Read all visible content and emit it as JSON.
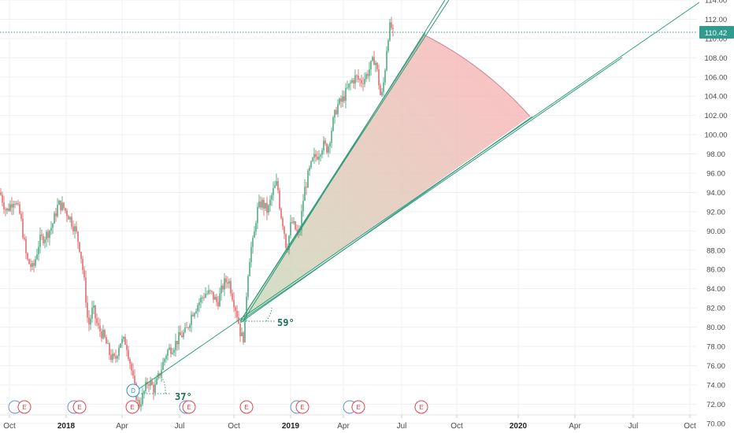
{
  "chart_data": {
    "type": "candlestick",
    "y_range": [
      69,
      114
    ],
    "y_ticks": [
      "114.00",
      "112.00",
      "110.00",
      "108.00",
      "106.00",
      "104.00",
      "102.00",
      "100.00",
      "98.00",
      "96.00",
      "94.00",
      "92.00",
      "90.00",
      "88.00",
      "86.00",
      "84.00",
      "82.00",
      "80.00",
      "78.00",
      "76.00",
      "74.00",
      "72.00",
      "70.00"
    ],
    "x_ticks": [
      {
        "label": "Oct",
        "bold": false
      },
      {
        "label": "2018",
        "bold": true
      },
      {
        "label": "Apr",
        "bold": false
      },
      {
        "label": "Jul",
        "bold": false
      },
      {
        "label": "Oct",
        "bold": false
      },
      {
        "label": "2019",
        "bold": true
      },
      {
        "label": "Apr",
        "bold": false
      },
      {
        "label": "Jul",
        "bold": false
      },
      {
        "label": "Oct",
        "bold": false
      },
      {
        "label": "2020",
        "bold": true
      },
      {
        "label": "Apr",
        "bold": false
      },
      {
        "label": "Jul",
        "bold": false
      },
      {
        "label": "Oct",
        "bold": false
      }
    ],
    "last_price": "110.42",
    "price_path": [
      [
        0,
        94
      ],
      [
        8,
        92
      ],
      [
        18,
        93.4
      ],
      [
        26,
        91.5
      ],
      [
        34,
        87
      ],
      [
        42,
        86
      ],
      [
        50,
        89
      ],
      [
        58,
        89.5
      ],
      [
        66,
        90.5
      ],
      [
        74,
        92.8
      ],
      [
        80,
        92.5
      ],
      [
        88,
        91.5
      ],
      [
        96,
        90
      ],
      [
        102,
        88
      ],
      [
        108,
        84
      ],
      [
        112,
        80
      ],
      [
        118,
        82
      ],
      [
        124,
        80
      ],
      [
        132,
        79
      ],
      [
        140,
        77
      ],
      [
        146,
        76.5
      ],
      [
        152,
        78.5
      ],
      [
        160,
        78.5
      ],
      [
        166,
        76
      ],
      [
        170,
        74
      ],
      [
        176,
        71.8
      ],
      [
        182,
        73
      ],
      [
        188,
        74.5
      ],
      [
        196,
        73.5
      ],
      [
        204,
        75.5
      ],
      [
        212,
        77.5
      ],
      [
        220,
        78
      ],
      [
        228,
        79
      ],
      [
        236,
        79.5
      ],
      [
        244,
        81.5
      ],
      [
        252,
        82.5
      ],
      [
        260,
        83.5
      ],
      [
        268,
        83.5
      ],
      [
        276,
        82.5
      ],
      [
        284,
        84.5
      ],
      [
        290,
        85
      ],
      [
        296,
        83
      ],
      [
        302,
        81
      ],
      [
        306,
        79
      ],
      [
        310,
        79
      ],
      [
        314,
        85
      ],
      [
        318,
        88
      ],
      [
        322,
        89
      ],
      [
        326,
        92
      ],
      [
        332,
        93
      ],
      [
        340,
        92
      ],
      [
        346,
        94
      ],
      [
        352,
        95
      ],
      [
        356,
        92
      ],
      [
        360,
        90.5
      ],
      [
        364,
        88
      ],
      [
        370,
        91
      ],
      [
        376,
        90
      ],
      [
        380,
        89.5
      ],
      [
        386,
        94
      ],
      [
        392,
        96
      ],
      [
        398,
        97.5
      ],
      [
        404,
        98
      ],
      [
        410,
        99
      ],
      [
        416,
        98.5
      ],
      [
        422,
        101
      ],
      [
        428,
        103
      ],
      [
        434,
        103.5
      ],
      [
        440,
        104.5
      ],
      [
        446,
        105.5
      ],
      [
        452,
        106
      ],
      [
        458,
        105.5
      ],
      [
        464,
        106
      ],
      [
        470,
        107
      ],
      [
        476,
        108
      ],
      [
        480,
        106
      ],
      [
        484,
        103.5
      ],
      [
        488,
        106
      ],
      [
        492,
        110
      ],
      [
        496,
        111.5
      ],
      [
        499,
        110.4
      ]
    ],
    "angle_annotations": [
      "59°",
      "37°"
    ],
    "events": [
      {
        "type": "E",
        "label": "E"
      },
      {
        "type": "E",
        "label": "E"
      },
      {
        "type": "E",
        "label": "E"
      },
      {
        "type": "D",
        "label": "D"
      },
      {
        "type": "E",
        "label": "E"
      },
      {
        "type": "E",
        "label": "E"
      },
      {
        "type": "E",
        "label": "E"
      },
      {
        "type": "E",
        "label": "E"
      },
      {
        "type": "E",
        "label": "E"
      },
      {
        "type": "E",
        "label": "E"
      }
    ],
    "colors": {
      "up": "#3a9e72",
      "down": "#d85a5a",
      "trendline": "#2f9c7c",
      "sector_near": "#c8dcbc",
      "sector_far": "#f7b9b9",
      "arc": "#c98a98",
      "price_line": "#2f9c8f",
      "price_tag_bg": "#2f9c8f",
      "grid": "#eef0f3",
      "earnings": "#e0454f",
      "dividend": "#2a8fd0"
    }
  }
}
